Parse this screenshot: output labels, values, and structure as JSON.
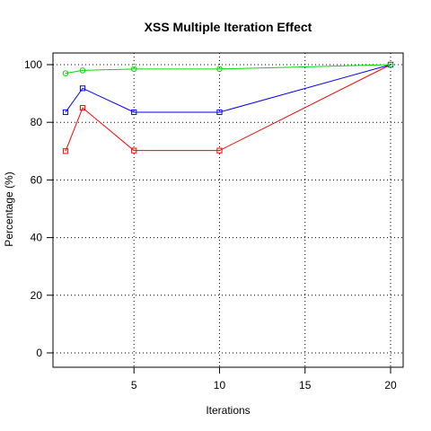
{
  "chart_data": {
    "type": "line",
    "title": "XSS Multiple Iteration Effect",
    "xlabel": "Iterations",
    "ylabel": "Percentage (%)",
    "xlim": [
      1,
      20
    ],
    "ylim": [
      0,
      100
    ],
    "xticks": [
      5,
      10,
      15,
      20
    ],
    "yticks": [
      0,
      20,
      40,
      60,
      80,
      100
    ],
    "grid": true,
    "legend": "none",
    "series": [
      {
        "color": "#ff0000",
        "marker": "square",
        "x": [
          1,
          2,
          5,
          10,
          20
        ],
        "y": [
          70,
          85,
          70.2,
          70.2,
          100
        ]
      },
      {
        "color": "#0000ff",
        "marker": "square",
        "x": [
          1,
          2,
          5,
          10,
          20
        ],
        "y": [
          83.5,
          91.8,
          83.5,
          83.5,
          100
        ]
      },
      {
        "color": "#00dd00",
        "marker": "circle",
        "x": [
          1,
          2,
          5,
          10,
          20
        ],
        "y": [
          97,
          98,
          98.5,
          98.5,
          100
        ]
      }
    ]
  }
}
